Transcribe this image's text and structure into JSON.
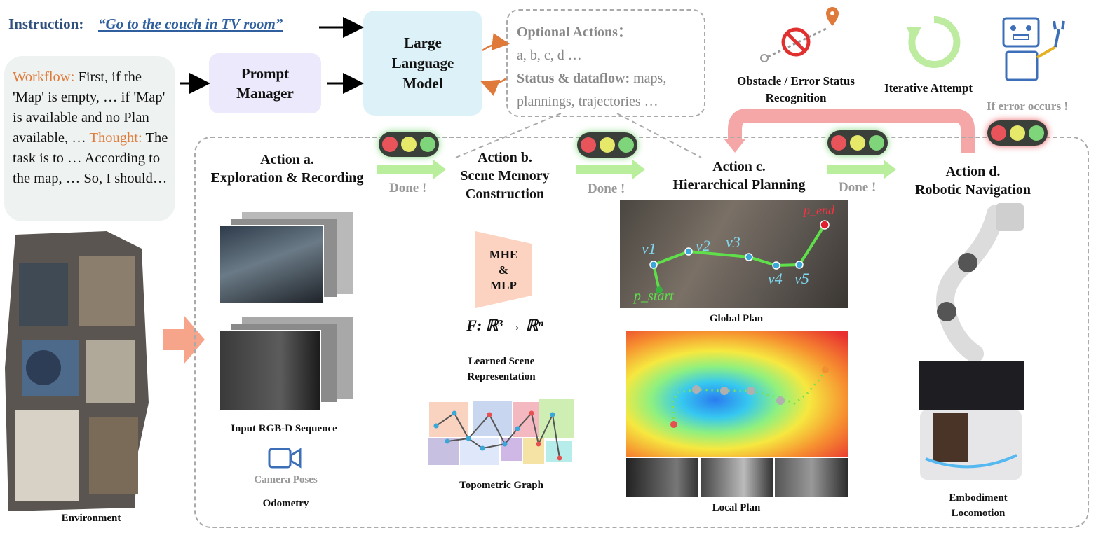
{
  "instruction": {
    "label": "Instruction:",
    "text": "“Go to the couch in TV room”"
  },
  "prompt_cloud": {
    "workflow_label": "Workflow:",
    "workflow_text": "First, if the 'Map' is empty, … if 'Map' is available and no Plan available, …",
    "thought_label": "Thought:",
    "thought_text": "The task is to … According to the map, … So, I should…"
  },
  "prompt_manager": {
    "line1": "Prompt",
    "line2": "Manager"
  },
  "llm": {
    "line1": "Large",
    "line2": "Language",
    "line3": "Model"
  },
  "optional": {
    "title": "Optional Actions：",
    "actions": "a, b, c, d …",
    "status_label": "Status & dataflow:",
    "status_text": "maps, plannings, trajectories …"
  },
  "status_icons": {
    "obstacle_line1": "Obstacle / Error Status",
    "obstacle_line2": "Recognition",
    "iterative": "Iterative Attempt",
    "error": "If error occurs !"
  },
  "actions": [
    {
      "line1": "Action a.",
      "line2": "Exploration & Recording"
    },
    {
      "line1": "Action b.",
      "line2": "Scene Memory",
      "line3": "Construction"
    },
    {
      "line1": "Action c.",
      "line2": "Hierarchical Planning"
    },
    {
      "line1": "Action d.",
      "line2": "Robotic Navigation"
    }
  ],
  "done_label": "Done !",
  "captions": {
    "rgbd": "Input RGB-D Sequence",
    "camera": "Camera Poses",
    "odometry": "Odometry",
    "environment": "Environment",
    "mhe_line1": "MHE",
    "mhe_line2": "&",
    "mhe_line3": "MLP",
    "formula": "F: ℝ³ → ℝⁿ",
    "learned_line1": "Learned Scene",
    "learned_line2": "Representation",
    "topometric": "Topometric Graph",
    "global_plan": "Global Plan",
    "local_plan": "Local Plan",
    "embodiment_line1": "Embodiment",
    "embodiment_line2": "Locomotion"
  },
  "plan_labels": {
    "v1": "v1",
    "v2": "v2",
    "v3": "v3",
    "v4": "v4",
    "v5": "v5",
    "start": "p_start",
    "end": "p_end"
  },
  "colors": {
    "red_light": "#e8545a",
    "yellow_light": "#e6e86a",
    "green_light": "#7fd67a",
    "done_arrow": "#b9ef9c",
    "feedback_arrow": "#f5a7a7",
    "accent_orange": "#e07a3a"
  }
}
